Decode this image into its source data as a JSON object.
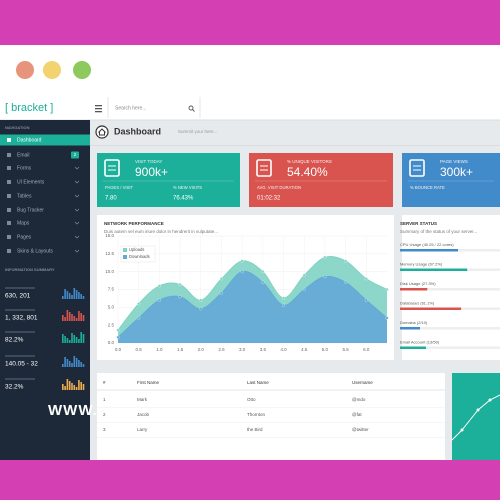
{
  "header": {
    "logo": "[ bracket ]",
    "search_placeholder": "Search here..."
  },
  "sidebar": {
    "section_title": "NAVIGATION",
    "items": [
      {
        "label": "Dashboard"
      },
      {
        "label": "Email",
        "badge": "2"
      },
      {
        "label": "Forms"
      },
      {
        "label": "UI Elements"
      },
      {
        "label": "Tables"
      },
      {
        "label": "Bug Tracker"
      },
      {
        "label": "Maps"
      },
      {
        "label": "Pages"
      },
      {
        "label": "Skins & Layouts"
      }
    ],
    "summary_title": "INFORMATION SUMMARY",
    "summary_values": [
      "630, 201",
      "1, 332, 801",
      "82.2%",
      "140.05 - 32",
      "32.2%"
    ]
  },
  "page": {
    "title": "Dashboard",
    "subtitle": "Summit your here..."
  },
  "cards": [
    {
      "title": "VISIT TODAY",
      "value": "900k+",
      "color": "#1caf9a",
      "stats": [
        {
          "label": "PAGES / VISIT",
          "value": "7.80"
        },
        {
          "label": "% NEW VISITS",
          "value": "76.43%"
        }
      ]
    },
    {
      "title": "% UNIQUE VISITORS",
      "value": "54.40%",
      "color": "#d9534f",
      "stats": [
        {
          "label": "AVG. VISIT DURATION",
          "value": "01:02:32"
        }
      ]
    },
    {
      "title": "PAGE VIEWS",
      "value": "300k+",
      "color": "#428bca",
      "stats": [
        {
          "label": "% BOUNCE RATE"
        }
      ]
    }
  ],
  "chart_data": {
    "type": "area",
    "title": "NETWORK PERFORMANCE",
    "subtitle": "Duis autem vel eum iriure dolor in hendrerit in vulputate...",
    "x": [
      0,
      0.5,
      1,
      1.5,
      2,
      2.5,
      3,
      3.5,
      4,
      4.5,
      5,
      5.5,
      6,
      6.5
    ],
    "series": [
      {
        "name": "Uploads",
        "color": "#7fd3c3",
        "values": [
          1.8,
          5.5,
          8,
          8.2,
          6,
          9,
          11.5,
          10,
          6.3,
          9.5,
          12,
          11.5,
          9,
          7.5
        ]
      },
      {
        "name": "Downloads",
        "color": "#63a9d6",
        "values": [
          0.8,
          3.5,
          6,
          6.5,
          4.8,
          7,
          10,
          8.5,
          5.3,
          7.5,
          9.3,
          8.5,
          6,
          3.5
        ]
      }
    ],
    "xlim": [
      0,
      6.5
    ],
    "xticks": [
      {
        "value": 0,
        "label": "0.0"
      },
      0.5,
      {
        "value": 1,
        "label": "1.0"
      },
      1.5,
      {
        "value": 2,
        "label": "2.0"
      },
      2.5,
      {
        "value": 3,
        "label": "3.0"
      },
      3.5,
      {
        "value": 4,
        "label": "4.0"
      },
      4.5,
      {
        "value": 5,
        "label": "5.0"
      },
      5.5,
      {
        "value": 6,
        "label": "6.0"
      }
    ],
    "ylim": [
      0,
      15
    ],
    "yticks": [
      {
        "value": 0,
        "label": "0.0"
      },
      2.5,
      {
        "value": 5,
        "label": "5.0"
      },
      7.5,
      {
        "value": 10,
        "label": "10.0"
      },
      12.5,
      {
        "value": 15,
        "label": "15.0"
      }
    ],
    "grid": true
  },
  "server": {
    "title": "SERVER STATUS",
    "subtitle": "Summary of the status of your server...",
    "rows": [
      {
        "label": "CPU Usage (40.25 / 22 cores)",
        "color": "#428bca",
        "progress": 58
      },
      {
        "label": "Memory Usage (67.2%)",
        "color": "#1caf9a",
        "progress": 67.2
      },
      {
        "label": "Disk Usage (27.3%)",
        "color": "#d9534f",
        "progress": 27.3
      },
      {
        "label": "Databases (61.1%)",
        "color": "#d9534f",
        "progress": 61.1
      },
      {
        "label": "Domains (2/10)",
        "color": "#428bca",
        "progress": 20
      },
      {
        "label": "Email Account (13/50)",
        "color": "#1caf9a",
        "progress": 26
      }
    ]
  },
  "table": {
    "header": [
      "#",
      "First Name",
      "Last Name",
      "Username"
    ],
    "rows": [
      [
        "1",
        "Mark",
        "Otto",
        "@mdo"
      ],
      [
        "2",
        "Jacob",
        "Thornton",
        "@fat"
      ],
      [
        "3",
        "Larry",
        "the Bird",
        "@twitter"
      ]
    ]
  },
  "watermark": "WWW."
}
